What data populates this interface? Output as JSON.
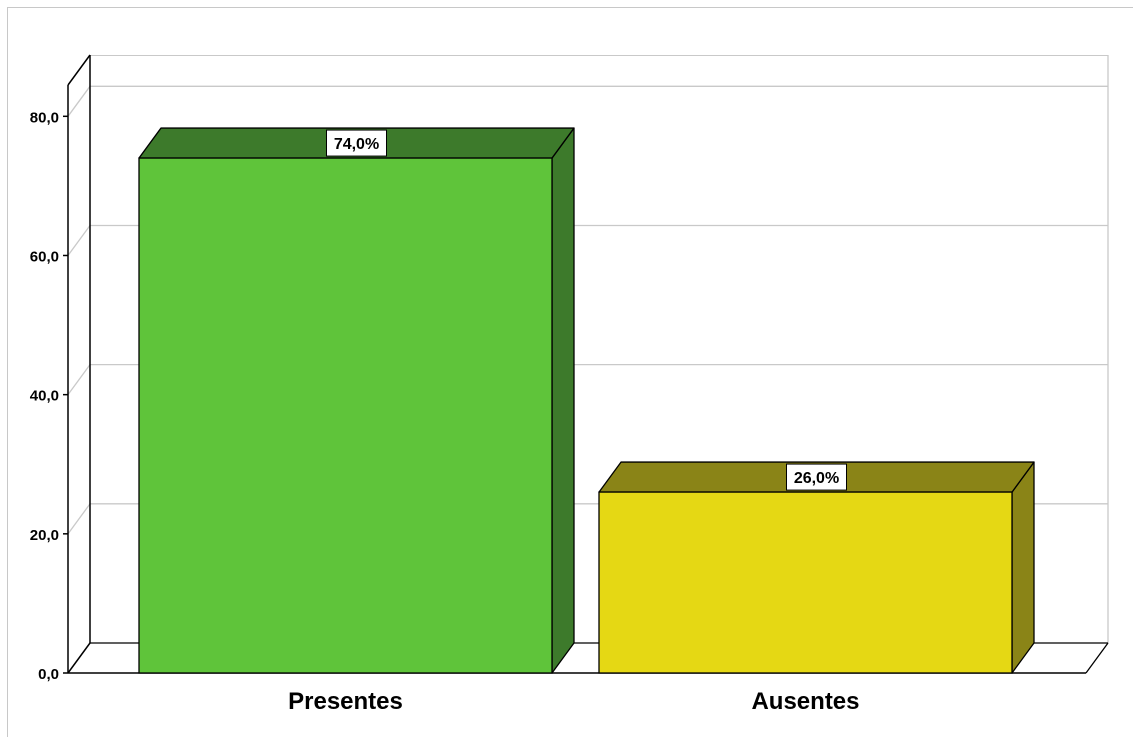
{
  "chart_data": {
    "type": "bar",
    "categories": [
      "Presentes",
      "Ausentes"
    ],
    "values": [
      74.0,
      26.0
    ],
    "data_labels": [
      "74,0%",
      "26,0%"
    ],
    "y_ticks": [
      "0,0",
      "20,0",
      "40,0",
      "60,0",
      "80,0"
    ],
    "y_tick_values": [
      0,
      20,
      40,
      60,
      80
    ],
    "ylim": [
      0,
      84.5
    ],
    "title": "",
    "xlabel": "",
    "ylabel": "",
    "grid": true,
    "three_d": true,
    "colors": {
      "bars": [
        "#5fc43a",
        "#e5d814"
      ],
      "bar_sides": [
        "#3d7a2b",
        "#8a8417"
      ],
      "bar_tops": [
        "#3d7a2b",
        "#8a8417"
      ],
      "grid": "#c9c9c9",
      "axis": "#000000"
    }
  }
}
